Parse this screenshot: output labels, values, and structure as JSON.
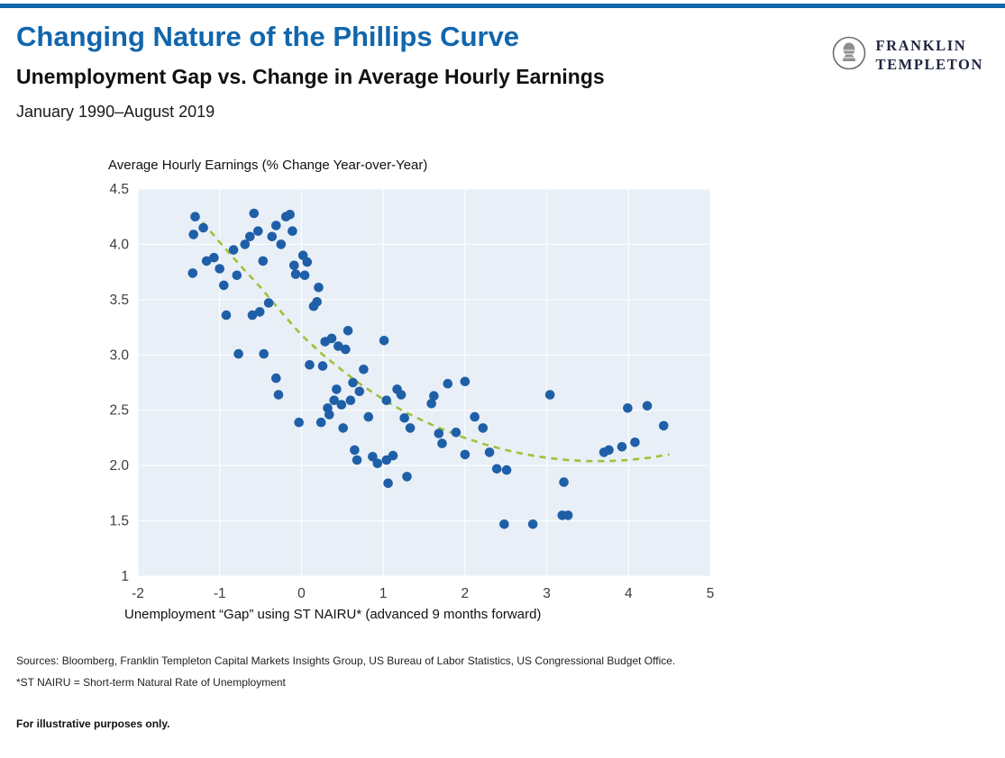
{
  "page": {
    "title": "Changing Nature of the Phillips Curve",
    "subtitle": "Unemployment Gap vs. Change in Average Hourly Earnings",
    "date_range": "January 1990–August 2019",
    "accent_color": "#1166AC"
  },
  "logo": {
    "line1": "FRANKLIN",
    "line2": "TEMPLETON"
  },
  "footer": {
    "sources": "Sources: Bloomberg, Franklin Templeton Capital Markets Insights Group, US Bureau of Labor Statistics, US Congressional Budget Office.",
    "note": "*ST NAIRU = Short-term Natural Rate of Unemployment",
    "disclaimer": "For illustrative purposes only."
  },
  "chart_data": {
    "type": "scatter",
    "title": "Unemployment Gap vs. Change in Average Hourly Earnings",
    "xlabel": "Unemployment “Gap” using ST NAIRU* (advanced 9 months forward)",
    "ylabel": "Average Hourly Earnings (% Change Year-over-Year)",
    "xlim": [
      -2,
      5
    ],
    "ylim": [
      1,
      4.5
    ],
    "grid": true,
    "grid_color": "#ffffff",
    "plot_bg": "#E8EFF6",
    "point_color": "#1F5FA8",
    "x_ticks": [
      {
        "v": -2,
        "label": "-2"
      },
      {
        "v": -1,
        "label": "-1"
      },
      {
        "v": 0,
        "label": "0"
      },
      {
        "v": 1,
        "label": "1"
      },
      {
        "v": 2,
        "label": "2"
      },
      {
        "v": 3,
        "label": "3"
      },
      {
        "v": 4,
        "label": "4"
      },
      {
        "v": 5,
        "label": "5"
      }
    ],
    "y_ticks": [
      {
        "v": 4.5,
        "label": "4.5"
      },
      {
        "v": 4.0,
        "label": "4.0"
      },
      {
        "v": 3.5,
        "label": "3.5"
      },
      {
        "v": 3.0,
        "label": "3.0"
      },
      {
        "v": 2.5,
        "label": "2.5"
      },
      {
        "v": 2.0,
        "label": "2.0"
      },
      {
        "v": 1.5,
        "label": "1.5"
      },
      {
        "v": 1.0,
        "label": "1"
      }
    ],
    "points": [
      [
        -1.3,
        4.25
      ],
      [
        -1.32,
        4.09
      ],
      [
        -1.2,
        4.15
      ],
      [
        -1.33,
        3.74
      ],
      [
        -1.16,
        3.85
      ],
      [
        -1.07,
        3.88
      ],
      [
        -1.0,
        3.78
      ],
      [
        -0.95,
        3.63
      ],
      [
        -0.92,
        3.36
      ],
      [
        -0.83,
        3.95
      ],
      [
        -0.79,
        3.72
      ],
      [
        -0.77,
        3.01
      ],
      [
        -0.69,
        4.0
      ],
      [
        -0.63,
        4.07
      ],
      [
        -0.58,
        4.28
      ],
      [
        -0.53,
        4.12
      ],
      [
        -0.6,
        3.36
      ],
      [
        -0.51,
        3.39
      ],
      [
        -0.47,
        3.85
      ],
      [
        -0.46,
        3.01
      ],
      [
        -0.4,
        3.47
      ],
      [
        -0.36,
        4.07
      ],
      [
        -0.31,
        4.17
      ],
      [
        -0.31,
        2.79
      ],
      [
        -0.28,
        2.64
      ],
      [
        -0.25,
        4.0
      ],
      [
        -0.19,
        4.25
      ],
      [
        -0.14,
        4.27
      ],
      [
        -0.11,
        4.12
      ],
      [
        -0.09,
        3.81
      ],
      [
        -0.07,
        3.73
      ],
      [
        -0.03,
        2.39
      ],
      [
        0.02,
        3.9
      ],
      [
        0.04,
        3.72
      ],
      [
        0.07,
        3.84
      ],
      [
        0.1,
        2.91
      ],
      [
        0.15,
        3.44
      ],
      [
        0.19,
        3.48
      ],
      [
        0.21,
        3.61
      ],
      [
        0.24,
        2.39
      ],
      [
        0.26,
        2.9
      ],
      [
        0.29,
        3.12
      ],
      [
        0.32,
        2.52
      ],
      [
        0.34,
        2.46
      ],
      [
        0.37,
        3.15
      ],
      [
        0.4,
        2.59
      ],
      [
        0.43,
        2.69
      ],
      [
        0.45,
        3.08
      ],
      [
        0.49,
        2.55
      ],
      [
        0.51,
        2.34
      ],
      [
        0.54,
        3.05
      ],
      [
        0.57,
        3.22
      ],
      [
        0.6,
        2.59
      ],
      [
        0.63,
        2.75
      ],
      [
        0.65,
        2.14
      ],
      [
        0.68,
        2.05
      ],
      [
        0.71,
        2.67
      ],
      [
        0.76,
        2.87
      ],
      [
        0.82,
        2.44
      ],
      [
        0.87,
        2.08
      ],
      [
        0.93,
        2.02
      ],
      [
        1.01,
        3.13
      ],
      [
        1.04,
        2.59
      ],
      [
        1.04,
        2.05
      ],
      [
        1.06,
        1.84
      ],
      [
        1.12,
        2.09
      ],
      [
        1.17,
        2.69
      ],
      [
        1.22,
        2.64
      ],
      [
        1.26,
        2.43
      ],
      [
        1.29,
        1.9
      ],
      [
        1.33,
        2.34
      ],
      [
        1.59,
        2.56
      ],
      [
        1.62,
        2.63
      ],
      [
        1.68,
        2.29
      ],
      [
        1.72,
        2.2
      ],
      [
        1.79,
        2.74
      ],
      [
        1.89,
        2.3
      ],
      [
        2.0,
        2.76
      ],
      [
        2.0,
        2.1
      ],
      [
        2.12,
        2.44
      ],
      [
        2.22,
        2.34
      ],
      [
        2.3,
        2.12
      ],
      [
        2.39,
        1.97
      ],
      [
        2.51,
        1.96
      ],
      [
        2.48,
        1.47
      ],
      [
        2.83,
        1.47
      ],
      [
        3.04,
        2.64
      ],
      [
        3.19,
        1.55
      ],
      [
        3.21,
        1.85
      ],
      [
        3.26,
        1.55
      ],
      [
        3.7,
        2.12
      ],
      [
        3.76,
        2.14
      ],
      [
        3.92,
        2.17
      ],
      [
        3.99,
        2.52
      ],
      [
        4.08,
        2.21
      ],
      [
        4.23,
        2.54
      ],
      [
        4.43,
        2.36
      ]
    ],
    "trend": {
      "style": "dashed",
      "color": "#A2C037",
      "points": [
        [
          -1.3,
          4.28
        ],
        [
          -1.15,
          4.15
        ],
        [
          -1.0,
          4.02
        ],
        [
          -0.75,
          3.81
        ],
        [
          -0.5,
          3.61
        ],
        [
          -0.25,
          3.39
        ],
        [
          0.0,
          3.18
        ],
        [
          0.25,
          3.01
        ],
        [
          0.5,
          2.86
        ],
        [
          0.75,
          2.72
        ],
        [
          1.0,
          2.6
        ],
        [
          1.25,
          2.49
        ],
        [
          1.5,
          2.4
        ],
        [
          1.75,
          2.32
        ],
        [
          2.0,
          2.25
        ],
        [
          2.25,
          2.19
        ],
        [
          2.5,
          2.14
        ],
        [
          2.75,
          2.1
        ],
        [
          3.0,
          2.07
        ],
        [
          3.25,
          2.05
        ],
        [
          3.5,
          2.04
        ],
        [
          3.75,
          2.04
        ],
        [
          4.0,
          2.05
        ],
        [
          4.25,
          2.07
        ],
        [
          4.5,
          2.1
        ]
      ]
    }
  }
}
